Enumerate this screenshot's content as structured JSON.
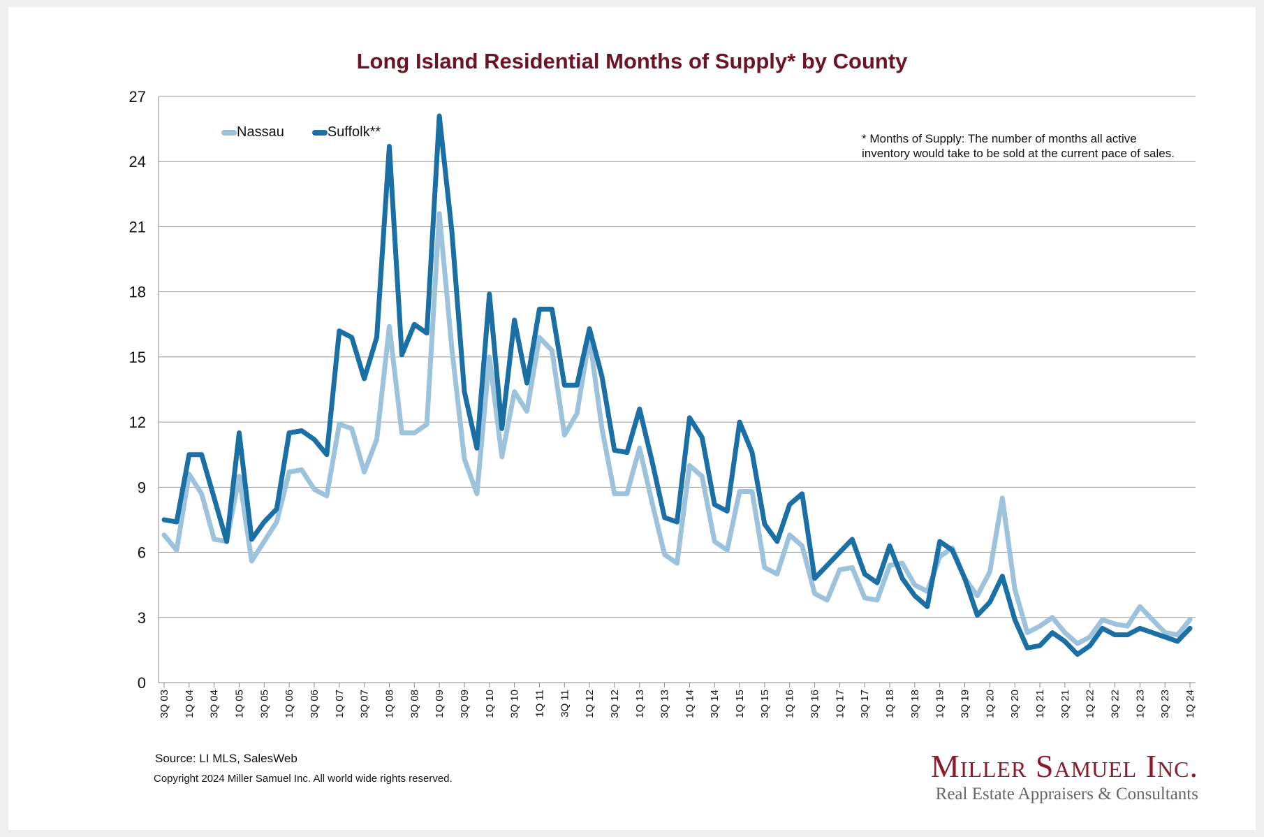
{
  "chart_data": {
    "type": "line",
    "title": "Long Island Residential Months of Supply* by County",
    "note_lines": [
      "* Months of Supply: The number of months all active",
      "inventory would take to be sold at the current pace of sales."
    ],
    "yticks": [
      "0",
      "3",
      "6",
      "9",
      "12",
      "15",
      "18",
      "21",
      "24",
      "27"
    ],
    "ylim": [
      0,
      27
    ],
    "grid": true,
    "legend_position": "top-left",
    "x": [
      "3Q 03",
      "4Q 03",
      "1Q 04",
      "2Q 04",
      "3Q 04",
      "4Q 04",
      "1Q 05",
      "2Q 05",
      "3Q 05",
      "4Q 05",
      "1Q 06",
      "2Q 06",
      "3Q 06",
      "4Q 06",
      "1Q 07",
      "2Q 07",
      "3Q 07",
      "4Q 07",
      "1Q 08",
      "2Q 08",
      "3Q 08",
      "4Q 08",
      "1Q 09",
      "2Q 09",
      "3Q 09",
      "4Q 09",
      "1Q 10",
      "2Q 10",
      "3Q 10",
      "4Q 10",
      "1Q 11",
      "2Q 11",
      "3Q 11",
      "4Q 11",
      "1Q 12",
      "2Q 12",
      "3Q 12",
      "4Q 12",
      "1Q 13",
      "2Q 13",
      "3Q 13",
      "4Q 13",
      "1Q 14",
      "2Q 14",
      "3Q 14",
      "4Q 14",
      "1Q 15",
      "2Q 15",
      "3Q 15",
      "4Q 15",
      "1Q 16",
      "2Q 16",
      "3Q 16",
      "4Q 16",
      "1Q 17",
      "2Q 17",
      "3Q 17",
      "4Q 17",
      "1Q 18",
      "2Q 18",
      "3Q 18",
      "4Q 18",
      "1Q 19",
      "2Q 19",
      "3Q 19",
      "4Q 19",
      "1Q 20",
      "2Q 20",
      "3Q 20",
      "4Q 20",
      "1Q 21",
      "2Q 21",
      "3Q 21",
      "4Q 21",
      "1Q 22",
      "2Q 22",
      "3Q 22",
      "4Q 22",
      "1Q 23",
      "2Q 23",
      "3Q 23",
      "4Q 23",
      "1Q 24"
    ],
    "xtick_labels": [
      "3Q 03",
      "1Q 04",
      "3Q 04",
      "1Q 05",
      "3Q 05",
      "1Q 06",
      "3Q 06",
      "1Q 07",
      "3Q 07",
      "1Q 08",
      "3Q 08",
      "1Q 09",
      "3Q 09",
      "1Q 10",
      "3Q 10",
      "1Q 11",
      "3Q 11",
      "1Q 12",
      "3Q 12",
      "1Q 13",
      "3Q 13",
      "1Q 14",
      "3Q 14",
      "1Q 15",
      "3Q 15",
      "1Q 16",
      "3Q 16",
      "1Q 17",
      "3Q 17",
      "1Q 18",
      "3Q 18",
      "1Q 19",
      "3Q 19",
      "1Q 20",
      "3Q 20",
      "1Q 21",
      "3Q 21",
      "1Q 22",
      "3Q 22",
      "1Q 23",
      "3Q 23",
      "1Q 24"
    ],
    "series": [
      {
        "name": "Nassau",
        "color": "#9dc3dc",
        "values": [
          6.8,
          6.1,
          9.6,
          8.7,
          6.6,
          6.5,
          9.5,
          5.6,
          6.5,
          7.4,
          9.7,
          9.8,
          8.9,
          8.6,
          11.9,
          11.7,
          9.7,
          11.2,
          16.4,
          11.5,
          11.5,
          11.9,
          21.6,
          15.4,
          10.3,
          8.7,
          15.0,
          10.4,
          13.4,
          12.5,
          15.9,
          15.3,
          11.4,
          12.4,
          15.9,
          11.7,
          8.7,
          8.7,
          10.8,
          8.3,
          5.9,
          5.5,
          10.0,
          9.5,
          6.5,
          6.1,
          8.8,
          8.8,
          5.3,
          5.0,
          6.8,
          6.3,
          4.1,
          3.8,
          5.2,
          5.3,
          3.9,
          3.8,
          5.4,
          5.5,
          4.5,
          4.2,
          5.8,
          6.2,
          4.8,
          4.0,
          5.1,
          8.5,
          4.3,
          2.3,
          2.6,
          3.0,
          2.3,
          1.8,
          2.1,
          2.9,
          2.7,
          2.6,
          3.5,
          2.9,
          2.3,
          2.2,
          2.9
        ]
      },
      {
        "name": "Suffolk**",
        "color": "#1a6fa5",
        "values": [
          7.5,
          7.4,
          10.5,
          10.5,
          8.5,
          6.5,
          11.5,
          6.6,
          7.4,
          8.0,
          11.5,
          11.6,
          11.2,
          10.5,
          16.2,
          15.9,
          14.0,
          15.9,
          24.7,
          15.1,
          16.5,
          16.1,
          26.1,
          20.8,
          13.4,
          10.8,
          17.9,
          11.7,
          16.7,
          13.8,
          17.2,
          17.2,
          13.7,
          13.7,
          16.3,
          14.1,
          10.7,
          10.6,
          12.6,
          10.2,
          7.6,
          7.4,
          12.2,
          11.3,
          8.2,
          7.9,
          12.0,
          10.6,
          7.3,
          6.5,
          8.2,
          8.7,
          4.8,
          5.4,
          6.0,
          6.6,
          5.0,
          4.6,
          6.3,
          4.8,
          4.0,
          3.5,
          6.5,
          6.1,
          4.8,
          3.1,
          3.7,
          4.9,
          2.9,
          1.6,
          1.7,
          2.3,
          1.9,
          1.3,
          1.7,
          2.5,
          2.2,
          2.2,
          2.5,
          2.3,
          2.1,
          1.9,
          2.5
        ]
      }
    ]
  },
  "source_text": "Source:  LI MLS, SalesWeb",
  "copyright_text": "Copyright 2024 Miller Samuel Inc.  All world wide rights reserved.",
  "logo": {
    "name": "Miller Samuel Inc.",
    "tagline": "Real Estate Appraisers & Consultants"
  }
}
